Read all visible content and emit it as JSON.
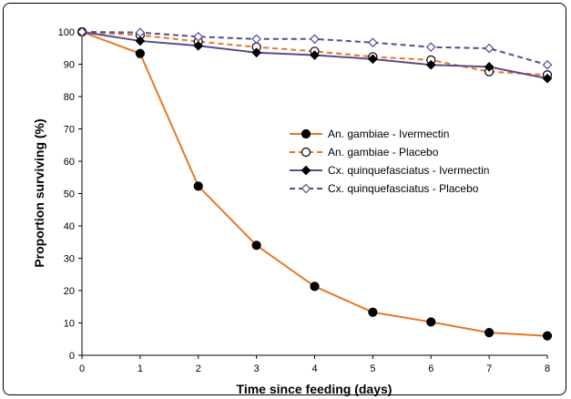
{
  "chart_data": {
    "type": "line",
    "title": "",
    "xlabel": "Time since feeding (days)",
    "ylabel": "Proportion surviving (%)",
    "x": [
      0,
      1,
      2,
      3,
      4,
      5,
      6,
      7,
      8
    ],
    "xlim": [
      0,
      8
    ],
    "ylim": [
      0,
      100
    ],
    "yticks": [
      0,
      10,
      20,
      30,
      40,
      50,
      60,
      70,
      80,
      90,
      100
    ],
    "xticks": [
      0,
      1,
      2,
      3,
      4,
      5,
      6,
      7,
      8
    ],
    "grid": false,
    "legend_position": "right-center",
    "series": [
      {
        "name": "An. gambiae - Ivermectin",
        "color": "#E87722",
        "line": "solid",
        "marker": "filled-circle",
        "values": [
          100,
          93.3,
          52.3,
          34,
          21.3,
          13.3,
          10.3,
          7,
          6
        ]
      },
      {
        "name": "An. gambiae - Placebo",
        "color": "#E87722",
        "line": "dashed",
        "marker": "open-circle",
        "values": [
          100,
          99,
          97,
          95.3,
          94,
          92.3,
          91.3,
          87.7,
          86.7
        ]
      },
      {
        "name": "Cx. quinquefasciatus - Ivermectin",
        "color": "#5B4A8B",
        "line": "solid",
        "marker": "filled-diamond",
        "values": [
          100,
          97.2,
          95.7,
          93.6,
          92.8,
          91.6,
          89.8,
          89.2,
          85.6
        ]
      },
      {
        "name": "Cx. quinquefasciatus - Placebo",
        "color": "#5B4A8B",
        "line": "dashed",
        "marker": "open-diamond",
        "values": [
          100,
          99.8,
          98.5,
          97.8,
          97.8,
          96.7,
          95.3,
          94.9,
          89.8
        ]
      }
    ]
  }
}
